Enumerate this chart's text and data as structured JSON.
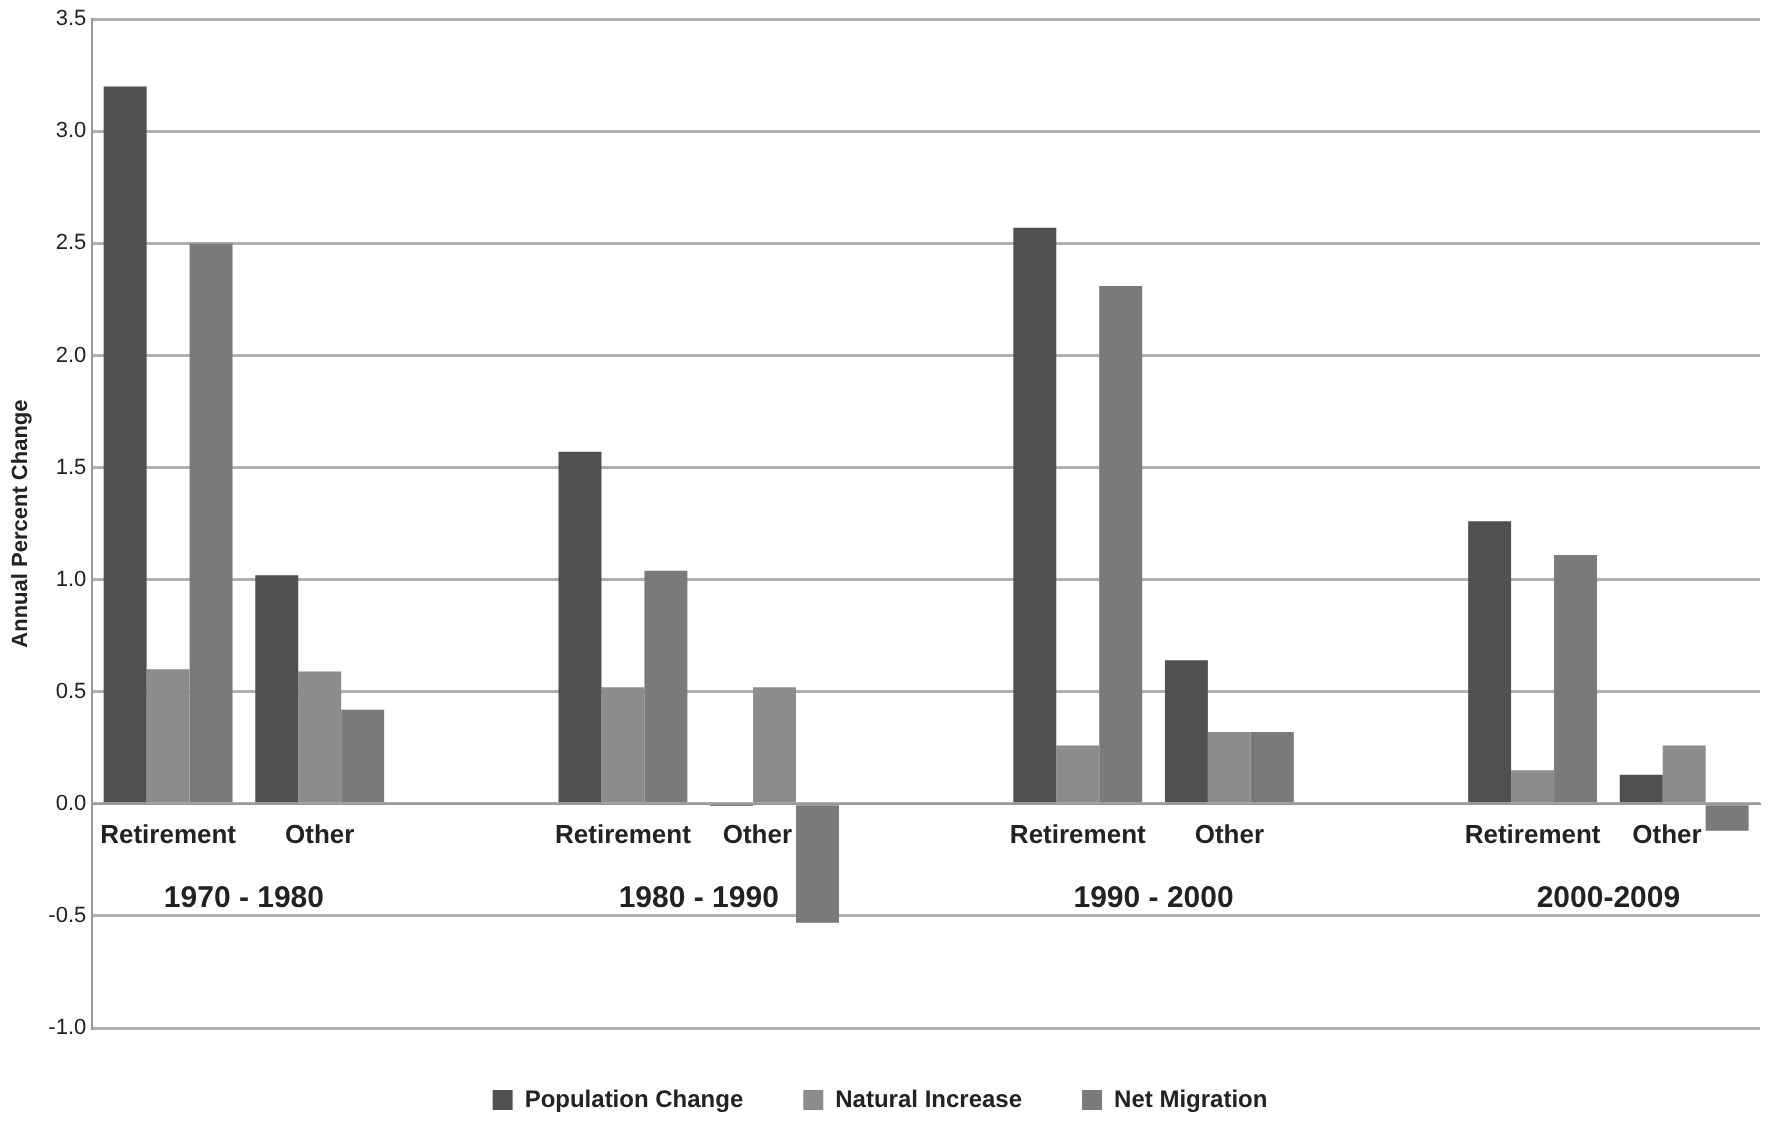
{
  "chart_data": {
    "type": "bar",
    "ylabel": "Annual Percent Change",
    "categories": [
      "Retirement",
      "Other",
      null,
      "Retirement",
      "Other",
      null,
      "Retirement",
      "Other",
      null,
      "Retirement",
      "Other"
    ],
    "series": [
      {
        "name": "Population Change",
        "color": "#505050",
        "values": [
          3.2,
          1.02,
          null,
          1.57,
          -0.01,
          null,
          2.57,
          0.64,
          null,
          1.26,
          0.13
        ]
      },
      {
        "name": "Natural Increase",
        "color": "#8c8c8c",
        "values": [
          0.6,
          0.59,
          null,
          0.52,
          0.52,
          null,
          0.26,
          0.32,
          null,
          0.15,
          0.26
        ]
      },
      {
        "name": "Net Migration",
        "color": "#7a7a7a",
        "values": [
          2.5,
          0.42,
          null,
          1.04,
          -0.53,
          null,
          2.31,
          0.32,
          null,
          1.11,
          -0.12
        ]
      }
    ],
    "ylim": [
      -1,
      3.5
    ],
    "yticks": [
      {
        "value": -1,
        "label": "-1.0"
      },
      {
        "value": -0.5,
        "label": "-0.5"
      },
      {
        "value": 0,
        "label": "0.0"
      },
      {
        "value": 0.5,
        "label": "0.5"
      },
      {
        "value": 1,
        "label": "1.0"
      },
      {
        "value": 1.5,
        "label": "1.5"
      },
      {
        "value": 2,
        "label": "2.0"
      },
      {
        "value": 2.5,
        "label": "2.5"
      },
      {
        "value": 3,
        "label": "3.0"
      },
      {
        "value": 3.5,
        "label": "3.5"
      }
    ],
    "annotations": [
      "1970 - 1980",
      "1980 - 1990",
      "1990 - 2000",
      "2000-2009"
    ],
    "grid": "y",
    "legend": "bottom"
  }
}
